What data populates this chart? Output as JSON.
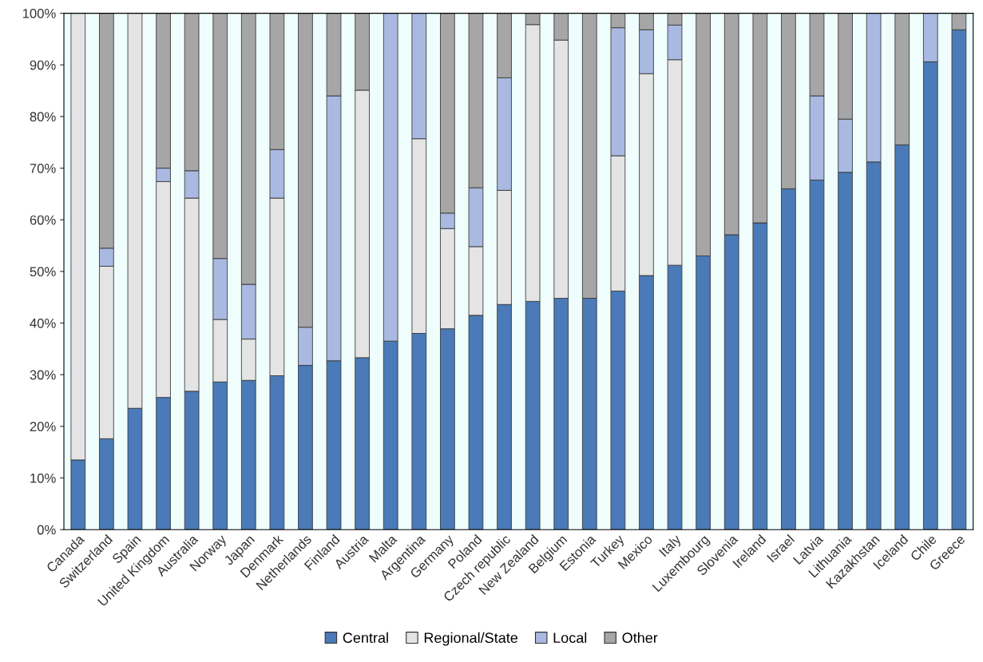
{
  "chart_data": {
    "type": "bar",
    "stacked": true,
    "categories": [
      "Canada",
      "Switzerland",
      "Spain",
      "United Kingdom",
      "Australia",
      "Norway",
      "Japan",
      "Denmark",
      "Netherlands",
      "Finland",
      "Austria",
      "Malta",
      "Argentina",
      "Germany",
      "Poland",
      "Czech republic",
      "New Zealand",
      "Belgium",
      "Estonia",
      "Turkey",
      "Mexico",
      "Italy",
      "Luxembourg",
      "Slovenia",
      "Ireland",
      "Israel",
      "Latvia",
      "Lithuania",
      "Kazakhstan",
      "Iceland",
      "Chile",
      "Greece"
    ],
    "series": [
      {
        "name": "Central",
        "color": "#4a7ab8",
        "values": [
          13.5,
          17.6,
          23.5,
          25.6,
          26.8,
          28.6,
          28.9,
          29.8,
          31.8,
          32.7,
          33.3,
          36.5,
          38,
          38.9,
          41.5,
          43.6,
          44.2,
          44.8,
          44.8,
          46.2,
          49.2,
          51.2,
          53,
          57.1,
          59.4,
          66,
          67.7,
          69.2,
          71.2,
          74.5,
          90.6,
          96.8
        ]
      },
      {
        "name": "Regional/State",
        "color": "#e4e4e4",
        "values": [
          86.5,
          33.4,
          76.5,
          41.8,
          37.4,
          12.1,
          8,
          34.4,
          0,
          0,
          51.8,
          0,
          37.7,
          19.4,
          13.3,
          22.1,
          53.6,
          50,
          0,
          26.2,
          39.1,
          39.8,
          0,
          0,
          0,
          0,
          0,
          0,
          0,
          0,
          0,
          0
        ]
      },
      {
        "name": "Local",
        "color": "#a9b9e1",
        "values": [
          0,
          3.5,
          0,
          2.6,
          5.3,
          11.8,
          10.6,
          9.4,
          7.4,
          51.3,
          0,
          63.5,
          24.3,
          3,
          11.4,
          21.8,
          0,
          0,
          0,
          24.8,
          8.5,
          6.7,
          0,
          0,
          0,
          0,
          16.3,
          10.3,
          28.8,
          0,
          9.4,
          0
        ]
      },
      {
        "name": "Other",
        "color": "#a6a6a6",
        "values": [
          0,
          45.5,
          0,
          30,
          30.5,
          47.5,
          52.5,
          26.4,
          60.8,
          16,
          14.9,
          0,
          0,
          38.7,
          33.8,
          12.5,
          2.2,
          5.2,
          55.2,
          2.8,
          3.2,
          2.3,
          47,
          42.9,
          40.6,
          34,
          16,
          20.5,
          0,
          25.5,
          0,
          3.2
        ]
      }
    ],
    "ylim": [
      0,
      100
    ],
    "yticks": [
      {
        "value": 0,
        "label": "0%"
      },
      {
        "value": 10,
        "label": "10%"
      },
      {
        "value": 20,
        "label": "20%"
      },
      {
        "value": 30,
        "label": "30%"
      },
      {
        "value": 40,
        "label": "40%"
      },
      {
        "value": 50,
        "label": "50%"
      },
      {
        "value": 60,
        "label": "60%"
      },
      {
        "value": 70,
        "label": "70%"
      },
      {
        "value": 80,
        "label": "80%"
      },
      {
        "value": 90,
        "label": "90%"
      },
      {
        "value": 100,
        "label": "100%"
      }
    ],
    "grid": false,
    "legend": "bottom"
  }
}
